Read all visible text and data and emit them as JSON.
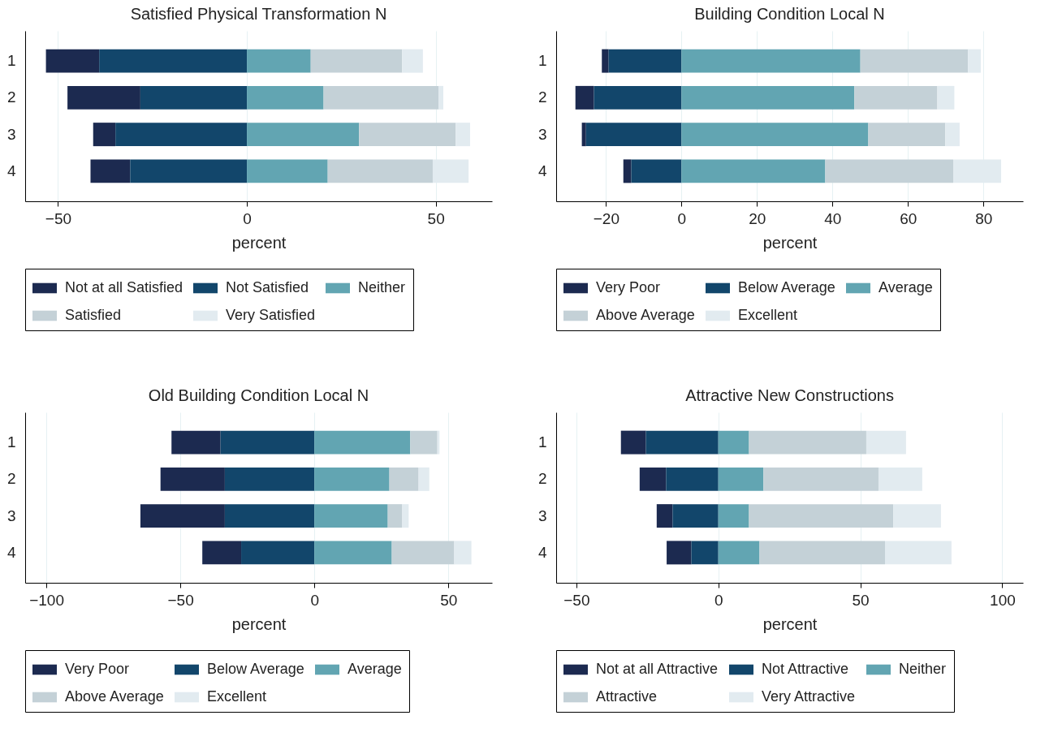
{
  "chart_data": [
    {
      "type": "bar",
      "orientation": "horizontal",
      "stacked": true,
      "title": "Satisfied Physical Transformation N",
      "xlabel": "percent",
      "categories": [
        "1",
        "2",
        "3",
        "4"
      ],
      "xlim": [
        -58.7,
        64.9
      ],
      "xticks": [
        -50,
        0,
        50
      ],
      "grid": "x",
      "legend": "bottom",
      "series": [
        {
          "name": "Not at all Satisfied",
          "color": "#1c2a50",
          "values": [
            -14.1,
            -19.3,
            -5.9,
            -10.5
          ]
        },
        {
          "name": "Not Satisfied",
          "color": "#12466b",
          "values": [
            -39.1,
            -28.2,
            -34.8,
            -30.9
          ]
        },
        {
          "name": "Neither",
          "color": "#62a5b2",
          "values": [
            16.9,
            20.3,
            29.7,
            21.4
          ]
        },
        {
          "name": "Satisfied",
          "color": "#c4d1d7",
          "values": [
            24.2,
            30.5,
            25.6,
            27.8
          ]
        },
        {
          "name": "Very Satisfied",
          "color": "#e2ebf0",
          "values": [
            5.5,
            1.2,
            3.8,
            9.5
          ]
        }
      ]
    },
    {
      "type": "bar",
      "orientation": "horizontal",
      "stacked": true,
      "title": "Building Condition Local N",
      "xlabel": "percent",
      "categories": [
        "1",
        "2",
        "3",
        "4"
      ],
      "xlim": [
        -33.2,
        90.5
      ],
      "xticks": [
        -20,
        0,
        20,
        40,
        60,
        80
      ],
      "grid": "x",
      "legend": "bottom",
      "series": [
        {
          "name": "Very Poor",
          "color": "#1c2a50",
          "values": [
            -1.8,
            -4.9,
            -1.1,
            -2.1
          ]
        },
        {
          "name": "Below Average",
          "color": "#12466b",
          "values": [
            -19.3,
            -23.2,
            -25.3,
            -13.3
          ]
        },
        {
          "name": "Average",
          "color": "#62a5b2",
          "values": [
            47.4,
            45.8,
            49.5,
            38.1
          ]
        },
        {
          "name": "Above Average",
          "color": "#c4d1d7",
          "values": [
            28.5,
            22.0,
            20.4,
            33.9
          ]
        },
        {
          "name": "Excellent",
          "color": "#e2ebf0",
          "values": [
            3.4,
            4.5,
            3.8,
            12.7
          ]
        }
      ]
    },
    {
      "type": "bar",
      "orientation": "horizontal",
      "stacked": true,
      "title": "Old Building Condition Local N",
      "xlabel": "percent",
      "categories": [
        "1",
        "2",
        "3",
        "4"
      ],
      "xlim": [
        -107.9,
        66.3
      ],
      "xticks": [
        -100,
        -50,
        0,
        50
      ],
      "grid": "x",
      "legend": "bottom",
      "series": [
        {
          "name": "Very Poor",
          "color": "#1c2a50",
          "values": [
            -18.3,
            -24.0,
            -31.5,
            -14.5
          ]
        },
        {
          "name": "Below Average",
          "color": "#12466b",
          "values": [
            -35.0,
            -33.4,
            -33.4,
            -27.3
          ]
        },
        {
          "name": "Average",
          "color": "#62a5b2",
          "values": [
            35.8,
            28.0,
            27.4,
            28.9
          ]
        },
        {
          "name": "Above Average",
          "color": "#c4d1d7",
          "values": [
            10.1,
            10.9,
            5.4,
            23.3
          ]
        },
        {
          "name": "Excellent",
          "color": "#e2ebf0",
          "values": [
            0.8,
            4.0,
            2.4,
            6.4
          ]
        }
      ]
    },
    {
      "type": "bar",
      "orientation": "horizontal",
      "stacked": true,
      "title": "Attractive New Constructions",
      "xlabel": "percent",
      "categories": [
        "1",
        "2",
        "3",
        "4"
      ],
      "xlim": [
        -57.1,
        107.3
      ],
      "xticks": [
        -50,
        0,
        50,
        100
      ],
      "grid": "x",
      "legend": "bottom",
      "series": [
        {
          "name": "Not at all Attractive",
          "color": "#1c2a50",
          "values": [
            -8.8,
            -9.3,
            -5.6,
            -8.7
          ]
        },
        {
          "name": "Not Attractive",
          "color": "#12466b",
          "values": [
            -25.5,
            -18.4,
            -16.1,
            -9.5
          ]
        },
        {
          "name": "Neither",
          "color": "#62a5b2",
          "values": [
            10.8,
            15.9,
            10.8,
            14.5
          ]
        },
        {
          "name": "Attractive",
          "color": "#c4d1d7",
          "values": [
            41.3,
            40.5,
            50.8,
            44.2
          ]
        },
        {
          "name": "Very Attractive",
          "color": "#e2ebf0",
          "values": [
            14.0,
            15.4,
            16.8,
            23.4
          ]
        }
      ]
    }
  ]
}
